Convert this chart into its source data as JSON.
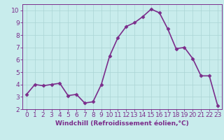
{
  "x": [
    0,
    1,
    2,
    3,
    4,
    5,
    6,
    7,
    8,
    9,
    10,
    11,
    12,
    13,
    14,
    15,
    16,
    17,
    18,
    19,
    20,
    21,
    22,
    23
  ],
  "y": [
    3.2,
    4.0,
    3.9,
    4.0,
    4.1,
    3.1,
    3.2,
    2.5,
    2.6,
    4.0,
    6.3,
    7.8,
    8.7,
    9.0,
    9.5,
    10.1,
    9.8,
    8.5,
    6.9,
    7.0,
    6.1,
    4.7,
    4.7,
    2.3
  ],
  "line_color": "#7b2d8b",
  "marker": "D",
  "marker_size": 2.5,
  "bg_color": "#c8ecec",
  "grid_color": "#aad4d4",
  "xlabel": "Windchill (Refroidissement éolien,°C)",
  "ylabel": "",
  "xlim": [
    -0.5,
    23.5
  ],
  "ylim": [
    2,
    10.5
  ],
  "yticks": [
    2,
    3,
    4,
    5,
    6,
    7,
    8,
    9,
    10
  ],
  "xticks": [
    0,
    1,
    2,
    3,
    4,
    5,
    6,
    7,
    8,
    9,
    10,
    11,
    12,
    13,
    14,
    15,
    16,
    17,
    18,
    19,
    20,
    21,
    22,
    23
  ],
  "tick_color": "#7b2d8b",
  "label_color": "#7b2d8b",
  "spine_color": "#7b2d8b",
  "linewidth": 1.2,
  "xlabel_fontsize": 6.5,
  "tick_fontsize": 6.5
}
